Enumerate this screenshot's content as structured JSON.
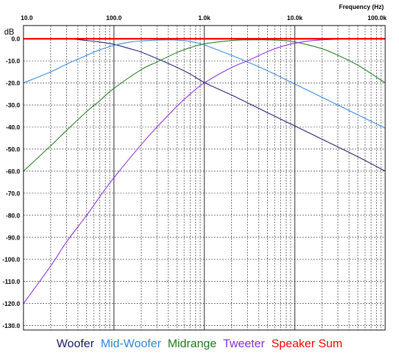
{
  "chart_data": {
    "type": "line",
    "title": "",
    "xlabel": "Frequency  (Hz)",
    "ylabel": "dB",
    "x_scale": "log",
    "xlim": [
      10,
      100000
    ],
    "ylim": [
      -132,
      6
    ],
    "grid": true,
    "x_tick_labels": [
      {
        "value": 10,
        "label": "10.0"
      },
      {
        "value": 100,
        "label": "100.0"
      },
      {
        "value": 1000,
        "label": "1.0k"
      },
      {
        "value": 10000,
        "label": "10.0k"
      },
      {
        "value": 100000,
        "label": "100.0k"
      }
    ],
    "y_ticks": [
      0,
      -10,
      -20,
      -30,
      -40,
      -50,
      -60,
      -70,
      -80,
      -90,
      -100,
      -110,
      -120,
      -130
    ],
    "y_tick_labels": [
      "0.0",
      "-10.0",
      "-20.0",
      "-30.0",
      "-40.0",
      "-50.0",
      "-60.0",
      "-70.0",
      "-80.0",
      "-90.0",
      "-100.0",
      "-110.0",
      "-120.0",
      "-130.0"
    ],
    "legend_position": "bottom",
    "series": [
      {
        "name": "Woofer",
        "color": "#1a1a6e",
        "x": [
          10,
          30,
          50,
          70,
          100,
          150,
          200,
          300,
          500,
          700,
          1000,
          2000,
          3000,
          5000,
          10000,
          20000,
          50000,
          100000
        ],
        "y": [
          0,
          0,
          -0.8,
          -1.5,
          -2.5,
          -4.5,
          -6,
          -9,
          -13,
          -16,
          -19.8,
          -25.5,
          -29,
          -33.5,
          -39.5,
          -45.5,
          -53.5,
          -60
        ]
      },
      {
        "name": "Mid-Woofer",
        "color": "#2e86de",
        "x": [
          10,
          20,
          30,
          50,
          70,
          100,
          150,
          200,
          300,
          400,
          500,
          700,
          1000,
          2000,
          3000,
          5000,
          10000,
          20000,
          50000,
          100000
        ],
        "y": [
          -20,
          -15,
          -11.5,
          -7.5,
          -5,
          -3,
          -1.5,
          -1,
          -0.6,
          -0.5,
          -0.6,
          -1.2,
          -2.8,
          -7.5,
          -10.5,
          -14.5,
          -20.5,
          -26.5,
          -34.5,
          -40.5
        ]
      },
      {
        "name": "Midrange",
        "color": "#1e7a1e",
        "x": [
          10,
          20,
          30,
          50,
          70,
          100,
          200,
          300,
          500,
          700,
          1000,
          2000,
          3000,
          5000,
          7000,
          10000,
          20000,
          30000,
          50000,
          100000
        ],
        "y": [
          -60,
          -48.5,
          -41.5,
          -33,
          -28,
          -22.5,
          -14,
          -10.5,
          -6.2,
          -4,
          -2.3,
          -0.8,
          -0.5,
          -0.5,
          -0.7,
          -1.4,
          -4.5,
          -7.5,
          -12,
          -20
        ]
      },
      {
        "name": "Tweeter",
        "color": "#8a2be2",
        "x": [
          10,
          20,
          30,
          50,
          70,
          100,
          200,
          300,
          500,
          700,
          1000,
          2000,
          3000,
          5000,
          7000,
          10000,
          15000,
          20000,
          30000,
          40000
        ],
        "y": [
          -120,
          -103,
          -92,
          -80,
          -71.5,
          -63,
          -48,
          -40,
          -30.5,
          -25,
          -20,
          -13,
          -10,
          -5.8,
          -3.6,
          -2,
          -0.9,
          -0.5,
          -0.2,
          0
        ]
      },
      {
        "name": "Speaker Sum",
        "color": "#ff0000",
        "x": [
          10,
          100000
        ],
        "y": [
          0,
          0
        ]
      }
    ]
  }
}
